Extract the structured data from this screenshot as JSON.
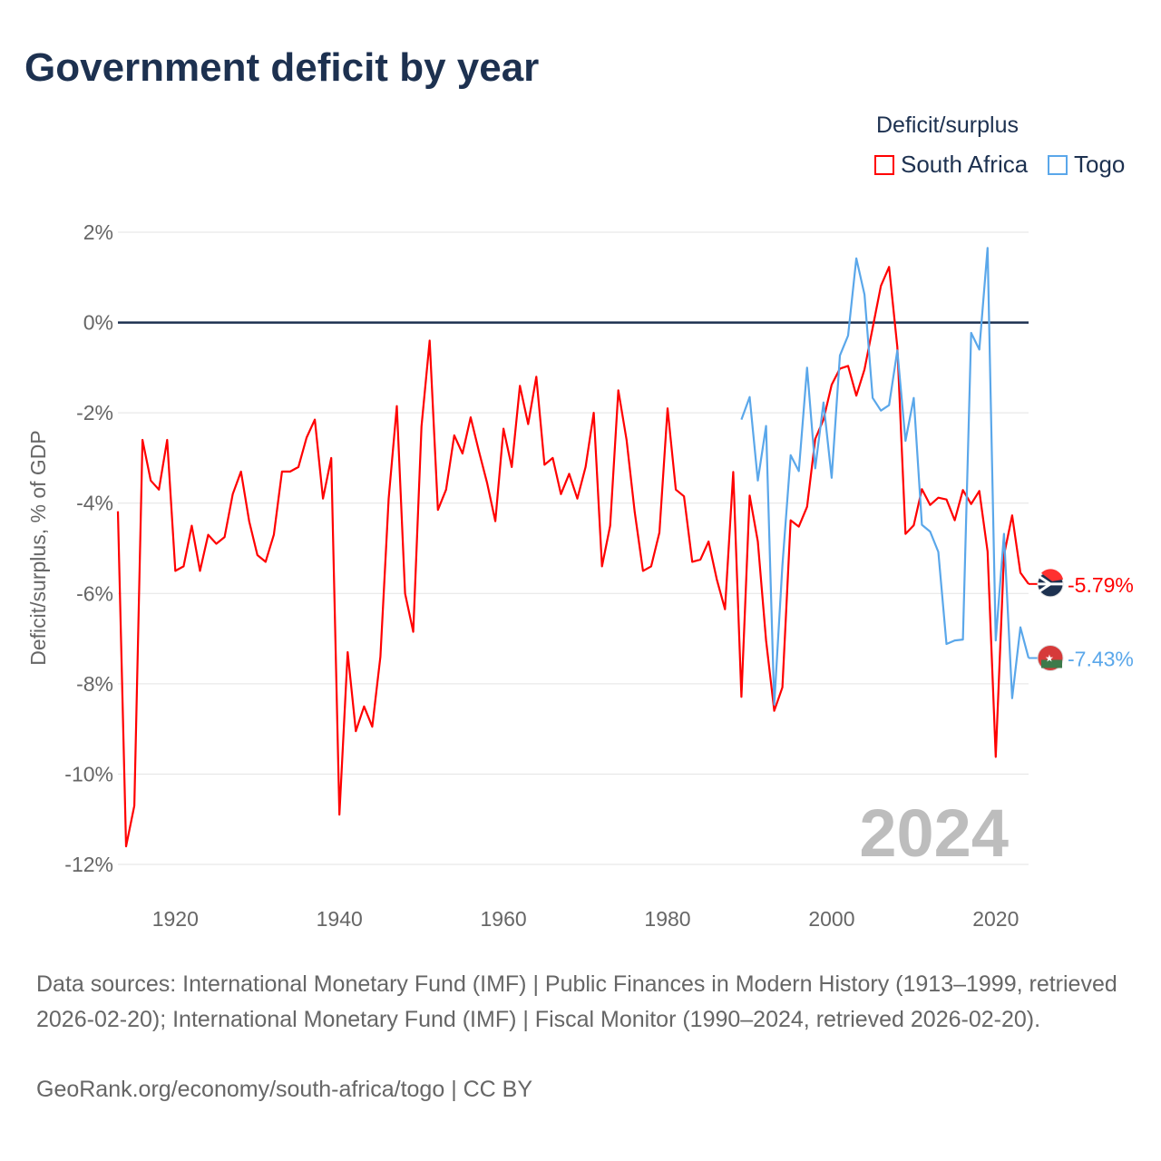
{
  "title": "Government deficit by year",
  "legend": {
    "title": "Deficit/surplus",
    "items": [
      {
        "name": "South Africa",
        "color": "#ff0000"
      },
      {
        "name": "Togo",
        "color": "#5aa7ea"
      }
    ]
  },
  "year_watermark": "2024",
  "footer": {
    "sources": "Data sources: International Monetary Fund (IMF) | Public Finances in Modern History (1913–1999, retrieved 2026-02-20); International Monetary Fund (IMF) | Fiscal Monitor (1990–2024, retrieved 2026-02-20).",
    "credit": "GeoRank.org/economy/south-africa/togo | CC BY"
  },
  "chart_data": {
    "type": "line",
    "title": "Government deficit by year",
    "xlabel": "",
    "ylabel": "Deficit/surplus, % of GDP",
    "xlim": [
      1913,
      2024
    ],
    "ylim": [
      -12,
      2
    ],
    "yticks": [
      2,
      0,
      -2,
      -4,
      -6,
      -8,
      -10,
      -12
    ],
    "ytick_labels": [
      "2%",
      "0%",
      "-2%",
      "-4%",
      "-6%",
      "-8%",
      "-10%",
      "-12%"
    ],
    "xticks": [
      1920,
      1940,
      1960,
      1980,
      2000,
      2020
    ],
    "xtick_labels": [
      "1920",
      "1940",
      "1960",
      "1980",
      "2000",
      "2020"
    ],
    "grid": true,
    "legend_position": "top-right",
    "series": [
      {
        "name": "South Africa",
        "color": "#ff0000",
        "start_year": 1913,
        "end_label": "-5.79%",
        "values": [
          -4.18,
          -11.6,
          -10.7,
          -2.6,
          -3.5,
          -3.7,
          -2.6,
          -5.5,
          -5.4,
          -4.5,
          -5.5,
          -4.7,
          -4.9,
          -4.75,
          -3.8,
          -3.3,
          -4.4,
          -5.15,
          -5.3,
          -4.7,
          -3.3,
          -3.3,
          -3.2,
          -2.55,
          -2.15,
          -3.9,
          -3.0,
          -10.9,
          -7.3,
          -9.05,
          -8.5,
          -8.95,
          -7.4,
          -3.9,
          -1.85,
          -6.0,
          -6.85,
          -2.3,
          -0.4,
          -4.15,
          -3.7,
          -2.5,
          -2.9,
          -2.1,
          -2.85,
          -3.55,
          -4.4,
          -2.35,
          -3.2,
          -1.4,
          -2.25,
          -1.2,
          -3.15,
          -3.0,
          -3.8,
          -3.35,
          -3.9,
          -3.2,
          -2.0,
          -5.4,
          -4.5,
          -1.5,
          -2.6,
          -4.2,
          -5.5,
          -5.4,
          -4.65,
          -1.9,
          -3.7,
          -3.85,
          -5.3,
          -5.25,
          -4.85,
          -5.69,
          -6.35,
          -3.31,
          -8.29,
          -3.83,
          -4.85,
          -7.04,
          -8.6,
          -8.08,
          -4.38,
          -4.52,
          -4.08,
          -2.58,
          -2.15,
          -1.38,
          -1.02,
          -0.96,
          -1.62,
          -1.04,
          -0.12,
          0.81,
          1.23,
          -0.54,
          -4.68,
          -4.49,
          -3.69,
          -4.04,
          -3.88,
          -3.92,
          -4.38,
          -3.71,
          -4.02,
          -3.73,
          -5.07,
          -9.62,
          -5.15,
          -4.27,
          -5.54,
          -5.79
        ]
      },
      {
        "name": "Togo",
        "color": "#5aa7ea",
        "start_year": 1989,
        "end_label": "-7.43%",
        "values": [
          -2.15,
          -1.65,
          -3.5,
          -2.29,
          -8.46,
          -5.38,
          -2.94,
          -3.29,
          -1.0,
          -3.23,
          -1.77,
          -3.44,
          -0.73,
          -0.29,
          1.42,
          0.62,
          -1.67,
          -1.95,
          -1.83,
          -0.62,
          -2.62,
          -1.67,
          -4.48,
          -4.63,
          -5.08,
          -7.12,
          -7.04,
          -7.02,
          -0.23,
          -0.6,
          1.65,
          -7.04,
          -4.68,
          -8.32,
          -6.75,
          -7.43
        ]
      }
    ]
  }
}
